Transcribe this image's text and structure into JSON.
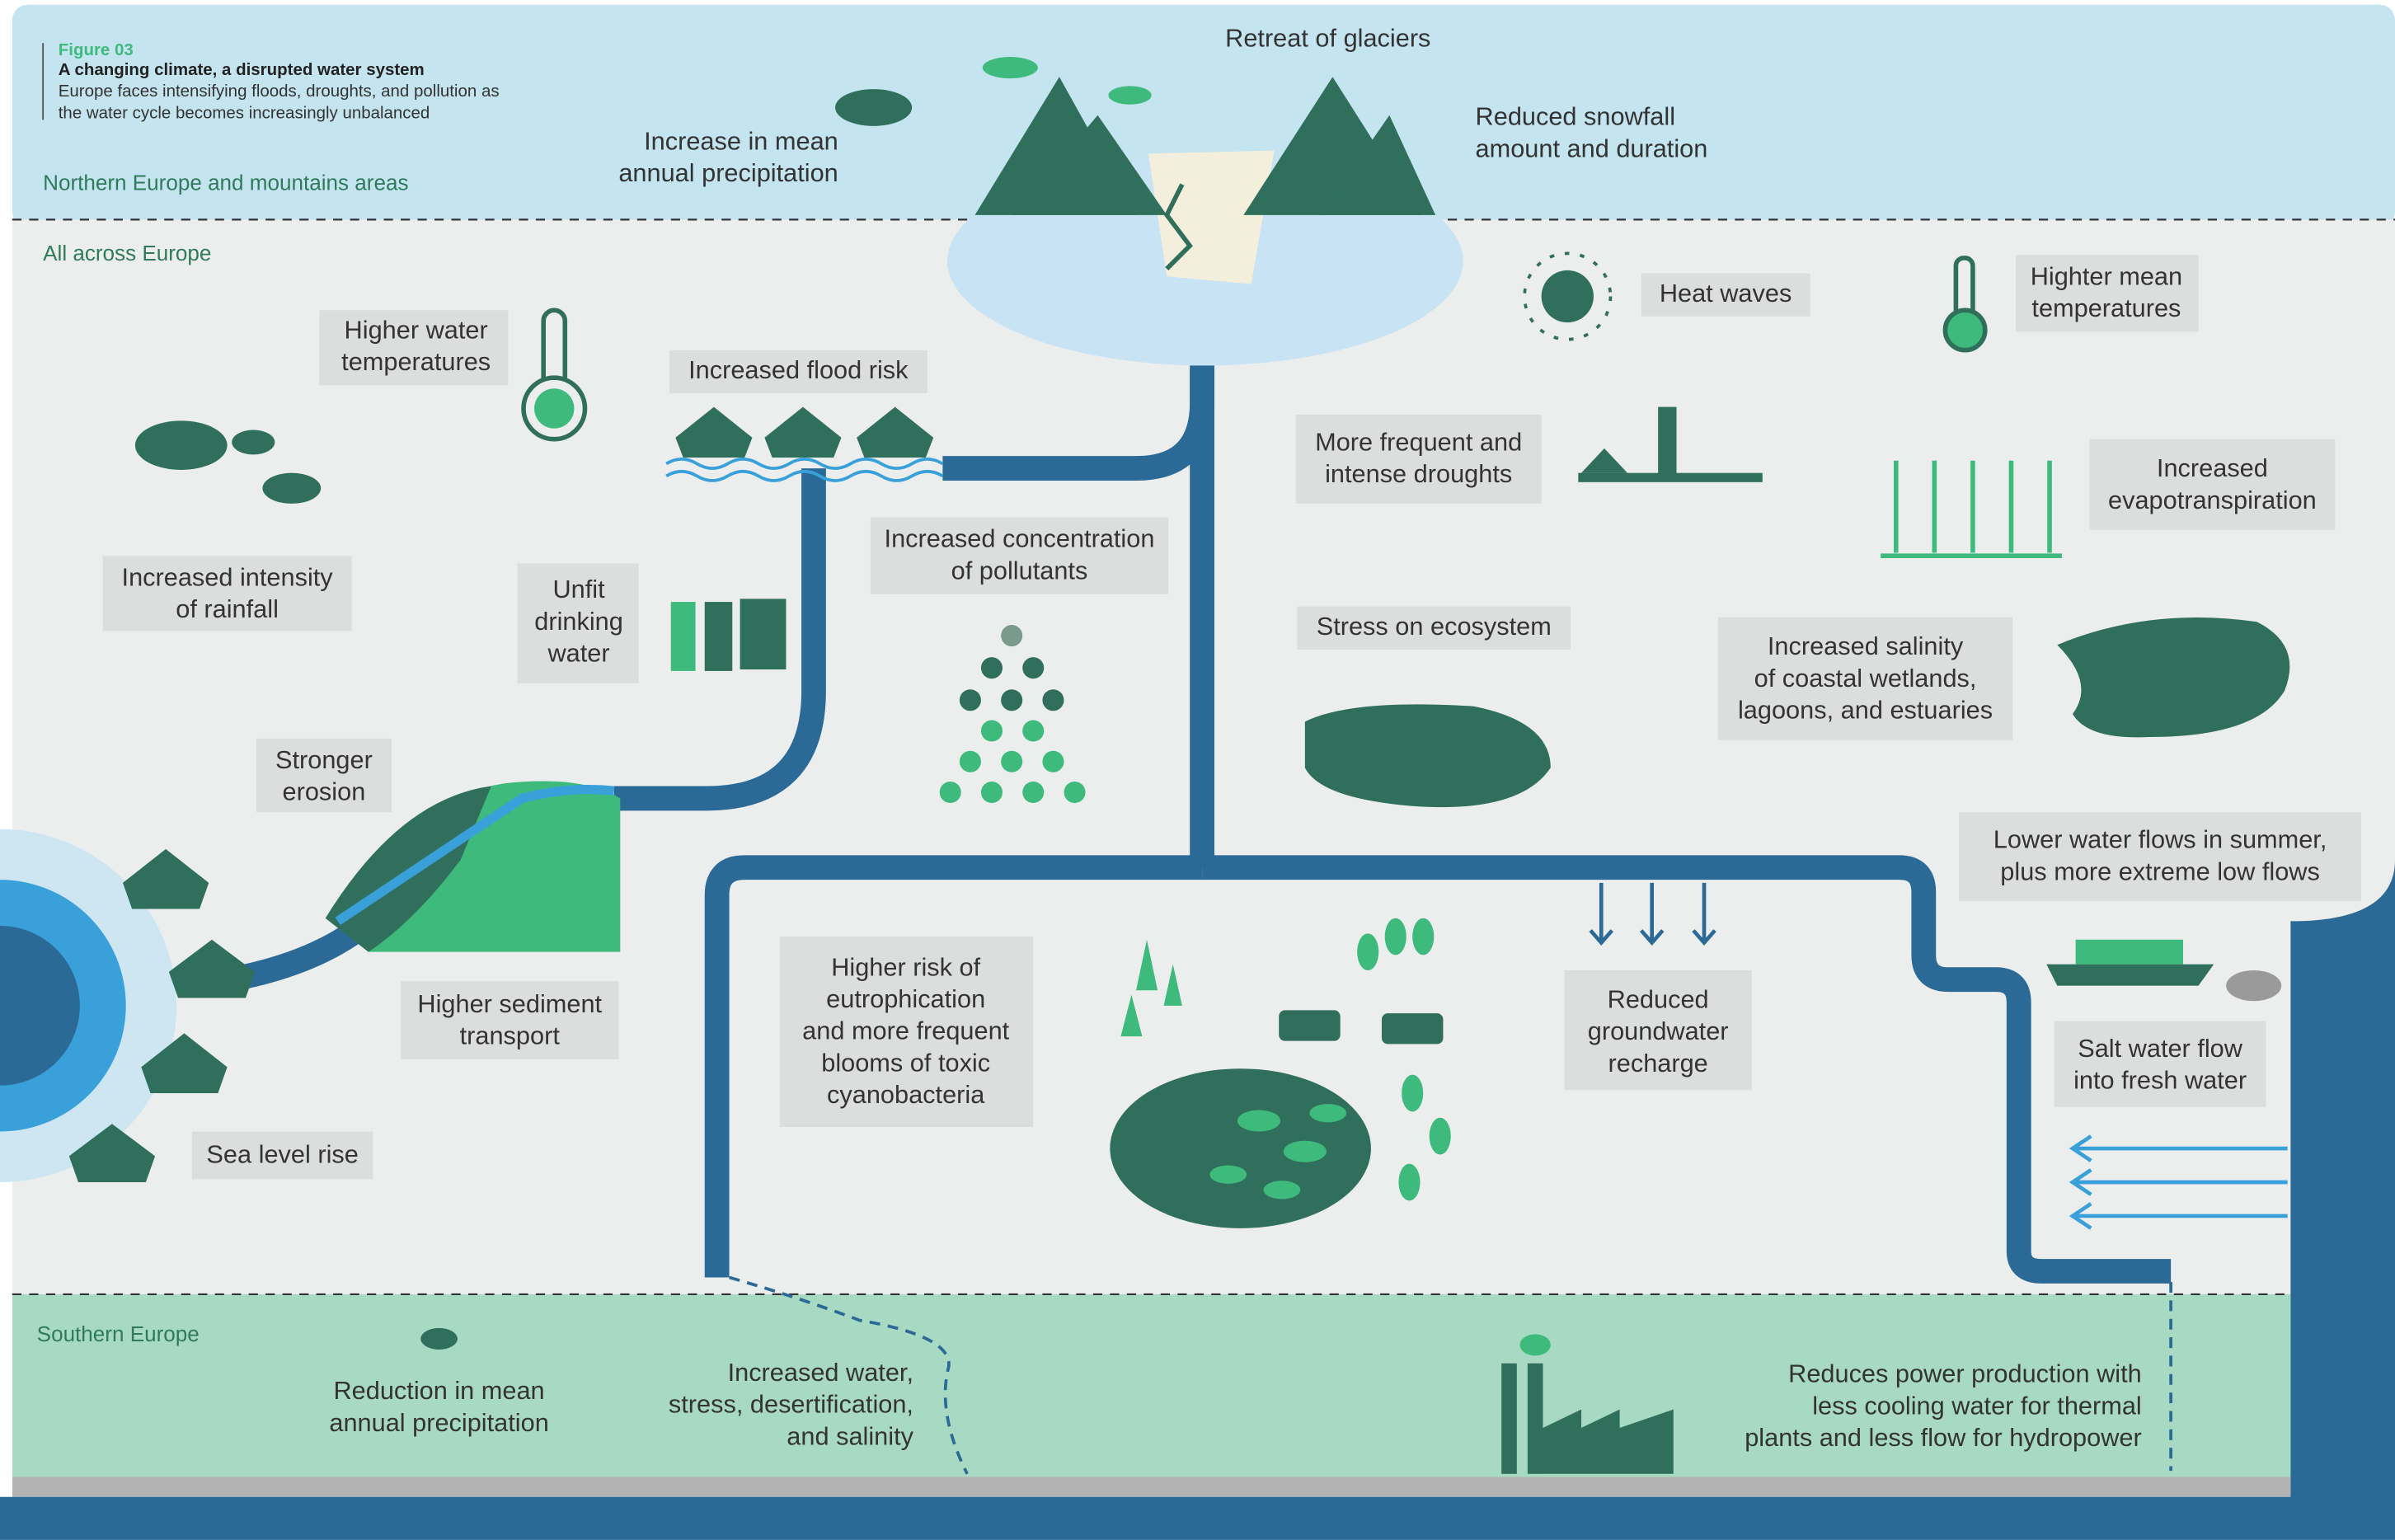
{
  "header": {
    "figure": "Figure 03",
    "title": "A changing climate, a disrupted water system",
    "subtitle": [
      "Europe faces intensifying floods, droughts, and pollution as",
      "the water cycle becomes increasingly unbalanced"
    ]
  },
  "regions": {
    "northern": "Northern Europe and mountains areas",
    "all_across": "All across Europe",
    "southern": "Southern Europe"
  },
  "labels": [
    {
      "lines": [
        "Retreat of glaciers"
      ]
    },
    {
      "lines": [
        "Increase in mean",
        "annual precipitation"
      ]
    },
    {
      "lines": [
        "Reduced snowfall",
        "amount and duration"
      ]
    },
    {
      "lines": [
        "Heat waves"
      ]
    },
    {
      "lines": [
        "Highter mean",
        "temperatures"
      ]
    },
    {
      "lines": [
        "Higher water",
        "temperatures"
      ]
    },
    {
      "lines": [
        "Increased flood risk"
      ]
    },
    {
      "lines": [
        "More frequent and",
        "intense droughts"
      ]
    },
    {
      "lines": [
        "Increased",
        "evapotranspiration"
      ]
    },
    {
      "lines": [
        "Increased intensity",
        "of rainfall"
      ]
    },
    {
      "lines": [
        "Unfit",
        "drinking",
        "water"
      ]
    },
    {
      "lines": [
        "Increased concentration",
        "of pollutants"
      ]
    },
    {
      "lines": [
        "Stress on ecosystem"
      ]
    },
    {
      "lines": [
        "Increased salinity",
        "of coastal wetlands,",
        "lagoons, and estuaries"
      ]
    },
    {
      "lines": [
        "Stronger",
        "erosion"
      ]
    },
    {
      "lines": [
        "Lower water flows in summer,",
        "plus more extreme low flows"
      ]
    },
    {
      "lines": [
        "Higher risk of",
        "eutrophication",
        "and more frequent",
        "blooms of toxic",
        "cyanobacteria"
      ]
    },
    {
      "lines": [
        "Reduced",
        "groundwater",
        "recharge"
      ]
    },
    {
      "lines": [
        "Higher sediment",
        "transport"
      ]
    },
    {
      "lines": [
        "Salt water flow",
        "into fresh water"
      ]
    },
    {
      "lines": [
        "Sea level rise"
      ]
    },
    {
      "lines": [
        "Reduction in mean",
        "annual precipitation"
      ]
    },
    {
      "lines": [
        "Increased water,",
        "stress, desertification,",
        "and salinity"
      ]
    },
    {
      "lines": [
        "Reduces power production with",
        "less cooling water for thermal",
        "plants and less flow for hydropower"
      ]
    }
  ]
}
